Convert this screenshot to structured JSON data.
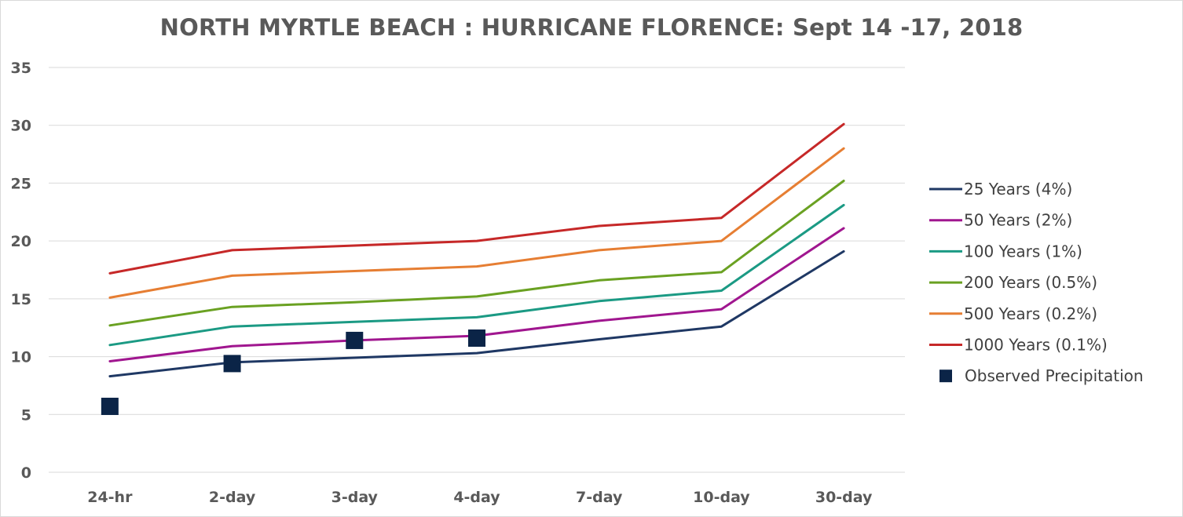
{
  "chart_data": {
    "type": "line",
    "title": "NORTH MYRTLE BEACH : HURRICANE FLORENCE: Sept 14 -17, 2018",
    "xlabel": "",
    "ylabel": "",
    "ylim": [
      0,
      35
    ],
    "y_ticks": [
      "0",
      "5",
      "10",
      "15",
      "20",
      "25",
      "30",
      "35"
    ],
    "grid": "horizontal",
    "legend_position": "right",
    "categories": [
      "24-hr",
      "2-day",
      "3-day",
      "4-day",
      "7-day",
      "10-day",
      "30-day"
    ],
    "series": [
      {
        "name": "25 Years (4%)",
        "kind": "line",
        "color": "#1f3864",
        "values": [
          8.3,
          9.5,
          9.9,
          10.3,
          11.5,
          12.6,
          19.1
        ]
      },
      {
        "name": "50 Years (2%)",
        "kind": "line",
        "color": "#a0168f",
        "values": [
          9.6,
          10.9,
          11.4,
          11.8,
          13.1,
          14.1,
          21.1
        ]
      },
      {
        "name": "100 Years (1%)",
        "kind": "line",
        "color": "#1b9a84",
        "values": [
          11.0,
          12.6,
          13.0,
          13.4,
          14.8,
          15.7,
          23.1
        ]
      },
      {
        "name": "200 Years (0.5%)",
        "kind": "line",
        "color": "#6aa122",
        "values": [
          12.7,
          14.3,
          14.7,
          15.2,
          16.6,
          17.3,
          25.2
        ]
      },
      {
        "name": "500 Years (0.2%)",
        "kind": "line",
        "color": "#e67e33",
        "values": [
          15.1,
          17.0,
          17.4,
          17.8,
          19.2,
          20.0,
          28.0
        ]
      },
      {
        "name": "1000 Years (0.1%)",
        "kind": "line",
        "color": "#c62828",
        "values": [
          17.2,
          19.2,
          19.6,
          20.0,
          21.3,
          22.0,
          30.1
        ]
      },
      {
        "name": "Observed Precipitation",
        "kind": "marker",
        "color": "#0b2447",
        "values": [
          5.7,
          9.4,
          11.4,
          11.6,
          null,
          null,
          null
        ]
      }
    ]
  }
}
